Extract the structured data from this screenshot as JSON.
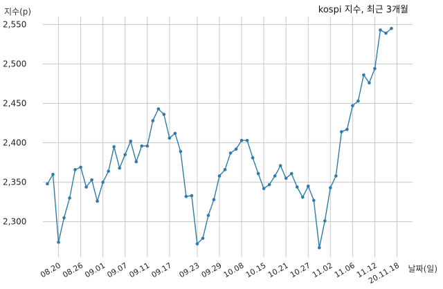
{
  "chart_data": {
    "type": "line",
    "title": "kospi 지수, 최근 3개월",
    "ylabel": "지수(p)",
    "xlabel": "날짜(일)",
    "ylim": [
      2255,
      2560
    ],
    "yticks": [
      2300,
      2350,
      2400,
      2450,
      2500,
      2550
    ],
    "ytick_labels": [
      "2,300",
      "2,350",
      "2,400",
      "2,450",
      "2,500",
      "2,550"
    ],
    "xtick_labels": [
      "08.20",
      "08.26",
      "09.01",
      "09.07",
      "09.11",
      "09.17",
      "09.23",
      "09.29",
      "10.08",
      "10.15",
      "10.21",
      "10.27",
      "11.02",
      "11.06",
      "11.12",
      "20.11.18"
    ],
    "xtick_index": [
      2,
      6,
      10,
      14,
      18,
      22,
      27,
      31,
      35,
      39,
      43,
      47,
      51,
      55,
      59,
      63
    ],
    "grid": true,
    "series": [
      {
        "color": "#2b7bb1",
        "values": [
          2348,
          2360,
          2274,
          2305,
          2330,
          2366,
          2369,
          2344,
          2353,
          2326,
          2350,
          2364,
          2395,
          2368,
          2385,
          2402,
          2376,
          2396,
          2396,
          2428,
          2443,
          2436,
          2406,
          2412,
          2389,
          2332,
          2333,
          2272,
          2279,
          2308,
          2328,
          2358,
          2366,
          2387,
          2392,
          2403,
          2403,
          2381,
          2361,
          2342,
          2347,
          2358,
          2371,
          2355,
          2361,
          2344,
          2331,
          2345,
          2327,
          2267,
          2301,
          2343,
          2358,
          2414,
          2417,
          2447,
          2453,
          2486,
          2476,
          2494,
          2543,
          2539,
          2545
        ]
      }
    ]
  }
}
